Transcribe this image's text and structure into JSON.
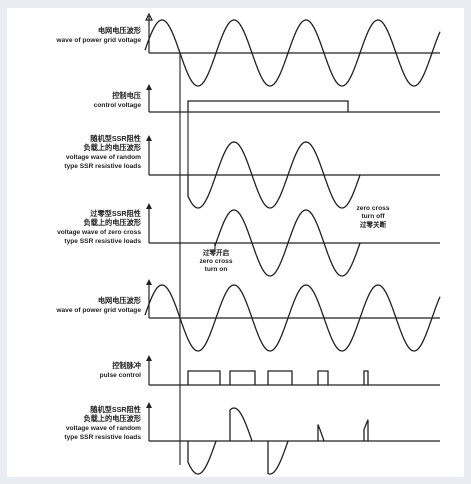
{
  "panels": [
    {
      "key": "grid1",
      "label_zh": "电网电压波形",
      "label_en": "wave of power grid voltage"
    },
    {
      "key": "ctrl",
      "label_zh": "控制电压",
      "label_en": "control voltage"
    },
    {
      "key": "rand",
      "label_zh": "随机型SSR阻性",
      "label_zh2": "负载上的电压波形",
      "label_en": "voltage wave of random",
      "label_en2": "type SSR resistive loads"
    },
    {
      "key": "zero",
      "label_zh": "过零型SSR阻性",
      "label_zh2": "负载上的电压波形",
      "label_en": "voltage wave of zero cross",
      "label_en2": "type SSR resistive loads"
    },
    {
      "key": "grid2",
      "label_zh": "电网电压波形",
      "label_en": "wave of power grid voltage"
    },
    {
      "key": "pulse",
      "label_zh": "控制脉冲",
      "label_en": "pulse control"
    },
    {
      "key": "rand2",
      "label_zh": "随机型SSR阻性",
      "label_zh2": "负载上的电压波形",
      "label_en": "voltage wave of random",
      "label_en2": "type SSR resistive loads"
    }
  ],
  "annotations": {
    "zero_on": {
      "zh": "过零开启",
      "en1": "zero cross",
      "en2": "turn on"
    },
    "zero_off": {
      "en1": "zero cross",
      "en2": "turn off",
      "zh": "过零关断"
    }
  },
  "colors": {
    "ink": "#222222",
    "frame_bg": "#e9edf2",
    "panel_bg": "#ffffff"
  }
}
